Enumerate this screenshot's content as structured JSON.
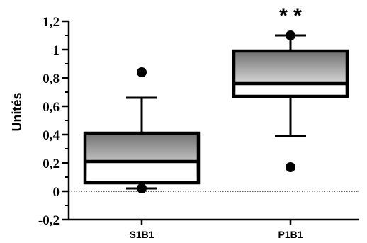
{
  "chart_data": {
    "type": "box",
    "title": "",
    "xlabel": "",
    "ylabel": "Unités",
    "ylim": [
      -0.2,
      1.2
    ],
    "yticks": [
      "-0,2",
      "0",
      "0,2",
      "0,4",
      "0,6",
      "0,8",
      "1",
      "1,2"
    ],
    "yticks_values": [
      -0.2,
      0,
      0.2,
      0.4,
      0.6,
      0.8,
      1.0,
      1.2
    ],
    "reference_line": 0,
    "grid": false,
    "categories": [
      "S1B1",
      "P1B1"
    ],
    "boxes": [
      {
        "name": "S1B1",
        "whisker_low": 0.02,
        "q1": 0.06,
        "median": 0.21,
        "q3": 0.41,
        "whisker_high": 0.66,
        "outliers": [
          0.84,
          0.02
        ],
        "annotation": ""
      },
      {
        "name": "P1B1",
        "whisker_low": 0.39,
        "q1": 0.67,
        "median": 0.76,
        "q3": 0.99,
        "whisker_high": 1.1,
        "outliers": [
          1.1,
          0.17
        ],
        "annotation": "* *"
      }
    ],
    "box_fill": {
      "top": "#707070",
      "bottom": "#ffffff"
    },
    "colors": {
      "stroke": "#000000",
      "background": "#ffffff"
    }
  }
}
